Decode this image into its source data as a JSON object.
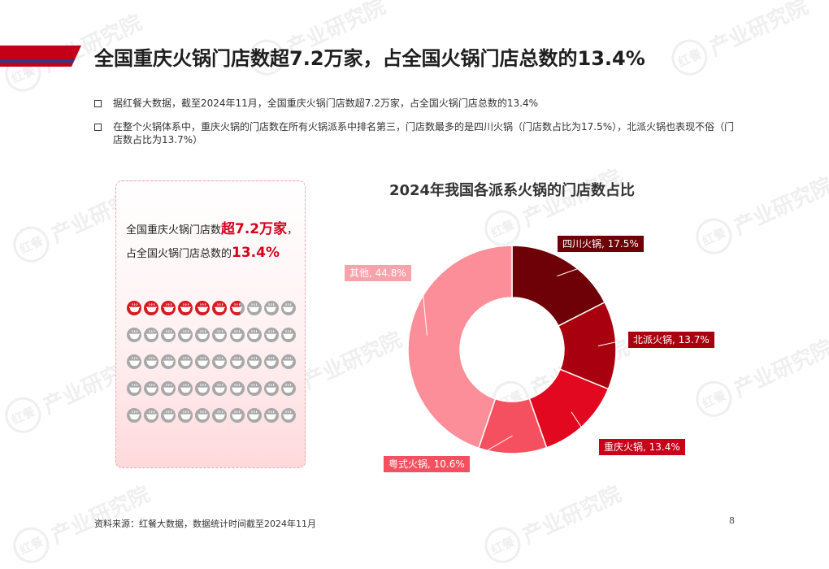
{
  "header": {
    "title": "全国重庆火锅门店数超7.2万家，占全国火锅门店总数的13.4%",
    "band_colors": [
      "#c40018",
      "#2b3a8c"
    ]
  },
  "bullets": [
    "据红餐大数据，截至2024年11月，全国重庆火锅门店数超7.2万家，占全国火锅门店总数的13.4%",
    "在整个火锅体系中，重庆火锅的门店数在所有火锅派系中排名第三，门店数最多的是四川火锅（门店数占比为17.5%），北派火锅也表现不俗（门店数占比为13.7%）"
  ],
  "stat_panel": {
    "line1_pre": "全国重庆火锅门店数",
    "line1_hl": "超7.2万家",
    "line1_post": "，",
    "line2_pre": "占全国火锅门店总数的",
    "line2_hl": "13.4%",
    "icon_grid": {
      "columns": 10,
      "rows": 5,
      "filled": 6.7,
      "filled_color": "#d71920",
      "empty_color": "#a8a8a8",
      "icon": "hotpot-icon"
    }
  },
  "chart_data": {
    "type": "pie",
    "title": "2024年我国各派系火锅的门店数占比",
    "labels": [
      "四川火锅",
      "北派火锅",
      "重庆火锅",
      "粤式火锅",
      "其他"
    ],
    "values": [
      17.5,
      13.7,
      13.4,
      10.6,
      44.8
    ],
    "label_texts": [
      "四川火锅, 17.5%",
      "北派火锅, 13.7%",
      "重庆火锅, 13.4%",
      "粤式火锅, 10.6%",
      "其他, 44.8%"
    ],
    "colors": [
      "#6e0008",
      "#a8000f",
      "#e1081f",
      "#f5505f",
      "#fb8e98"
    ],
    "label_bg": [
      "#6e0008",
      "#a8000f",
      "#c8001a",
      "#f5505f",
      "#f7a3ab"
    ],
    "donut": true,
    "start_angle_deg": 0,
    "direction": "clockwise"
  },
  "footer": {
    "source": "资料来源：红餐大数据，数据统计时间截至2024年11月",
    "page": "8"
  },
  "watermark": {
    "logo": "红餐",
    "text": "产业研究院"
  }
}
